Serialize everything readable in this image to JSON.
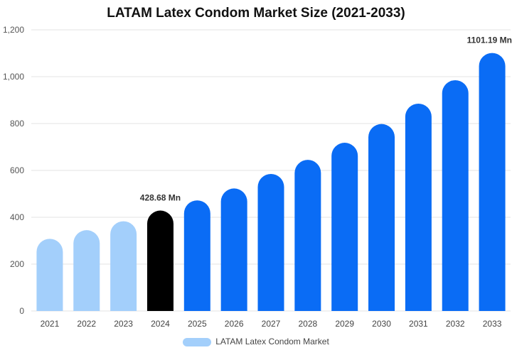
{
  "chart_data": {
    "type": "bar",
    "title": "LATAM Latex Condom Market Size (2021-2033)",
    "categories": [
      "2021",
      "2022",
      "2023",
      "2024",
      "2025",
      "2026",
      "2027",
      "2028",
      "2029",
      "2030",
      "2031",
      "2032",
      "2033"
    ],
    "series": [
      {
        "name": "LATAM Latex Condom Market",
        "values": [
          308,
          345,
          383,
          428.68,
          472,
          523,
          585,
          645,
          718,
          798,
          885,
          985,
          1101.19
        ]
      }
    ],
    "ylim": [
      0,
      1200
    ],
    "yticks": [
      0,
      200,
      400,
      600,
      800,
      1000,
      1200
    ],
    "ytick_labels": [
      "0",
      "200",
      "400",
      "600",
      "800",
      "1,000",
      "1,200"
    ],
    "grid": "horizontal",
    "legend_position": "bottom",
    "colors": {
      "historical": "#a3cffb",
      "base_year": "#000000",
      "forecast": "#0a6cf5",
      "grid": "#e3e3e3"
    },
    "base_year_index": 3,
    "data_labels": [
      {
        "index": 3,
        "text": "428.68 Mn"
      },
      {
        "index": 12,
        "text": "1101.19 Mn"
      }
    ]
  }
}
